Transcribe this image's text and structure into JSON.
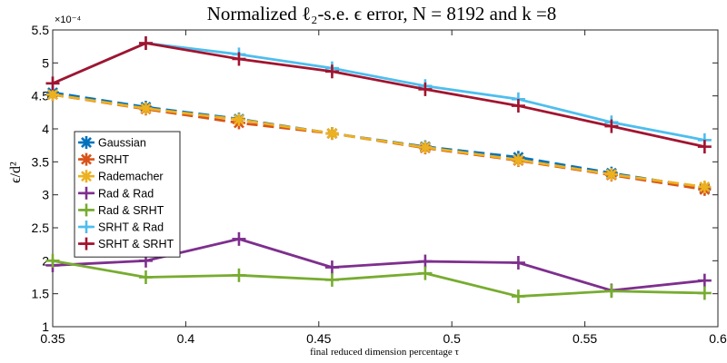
{
  "chart_data": {
    "type": "line",
    "title": "Normalized ℓ₂-s.e. ϵ error, N = 8192 and k =8",
    "xlabel": "final reduced dimension percentage τ",
    "ylabel": "ϵ/d²",
    "y_exponent_label": "×10⁻⁴",
    "xlim": [
      0.35,
      0.6
    ],
    "ylim": [
      1,
      5.5
    ],
    "x_ticks": [
      0.35,
      0.4,
      0.45,
      0.5,
      0.55,
      0.6
    ],
    "x_tick_labels": [
      "0.35",
      "0.4",
      "0.45",
      "0.5",
      "0.55",
      "0.6"
    ],
    "y_ticks": [
      1,
      1.5,
      2,
      2.5,
      3,
      3.5,
      4,
      4.5,
      5,
      5.5
    ],
    "y_tick_labels": [
      "1",
      "1.5",
      "2",
      "2.5",
      "3",
      "3.5",
      "4",
      "4.5",
      "5",
      "5.5"
    ],
    "grid": false,
    "legend_position": "middle-left",
    "x": [
      0.35,
      0.385,
      0.42,
      0.455,
      0.49,
      0.525,
      0.56,
      0.595
    ],
    "series": [
      {
        "name": "Gaussian",
        "color": "#0072BD",
        "dash": true,
        "marker": "asterisk",
        "values": [
          4.55,
          4.33,
          4.15,
          3.93,
          3.73,
          3.57,
          3.33,
          3.1
        ]
      },
      {
        "name": "SRHT",
        "color": "#D95319",
        "dash": true,
        "marker": "asterisk",
        "values": [
          4.52,
          4.3,
          4.09,
          3.93,
          3.71,
          3.52,
          3.3,
          3.08
        ]
      },
      {
        "name": "Rademacher",
        "color": "#EDB120",
        "dash": true,
        "marker": "asterisk",
        "values": [
          4.52,
          4.31,
          4.14,
          3.93,
          3.72,
          3.53,
          3.31,
          3.12
        ]
      },
      {
        "name": "Rad & Rad",
        "color": "#7E2F8E",
        "dash": false,
        "marker": "plus",
        "values": [
          1.93,
          2.0,
          2.33,
          1.9,
          1.99,
          1.97,
          1.55,
          1.7
        ]
      },
      {
        "name": "Rad & SRHT",
        "color": "#77AC30",
        "dash": false,
        "marker": "plus",
        "values": [
          2.0,
          1.75,
          1.78,
          1.71,
          1.81,
          1.46,
          1.54,
          1.51
        ]
      },
      {
        "name": "SRHT & Rad",
        "color": "#4DBEEE",
        "dash": false,
        "marker": "plus",
        "values": [
          4.69,
          5.3,
          5.13,
          4.92,
          4.65,
          4.45,
          4.1,
          3.83
        ]
      },
      {
        "name": "SRHT & SRHT",
        "color": "#A2142F",
        "dash": false,
        "marker": "plus",
        "values": [
          4.69,
          5.3,
          5.06,
          4.87,
          4.6,
          4.35,
          4.04,
          3.73
        ]
      }
    ]
  }
}
